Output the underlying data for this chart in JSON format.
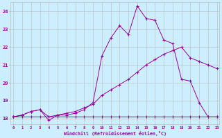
{
  "xlabel": "Windchill (Refroidissement éolien,°C)",
  "bg_color": "#cceeff",
  "line_color": "#990099",
  "grid_color": "#bbbbbb",
  "xmin": 0,
  "xmax": 23,
  "ymin": 17.7,
  "ymax": 24.5,
  "yticks": [
    18,
    19,
    20,
    21,
    22,
    23,
    24
  ],
  "series1_x": [
    0,
    1,
    2,
    3,
    4,
    5,
    6,
    7,
    8,
    9,
    10,
    11,
    12,
    13,
    14,
    15,
    16,
    17,
    18,
    19,
    20,
    21,
    22,
    23
  ],
  "series1_y": [
    18.1,
    18.1,
    18.1,
    18.1,
    18.1,
    18.1,
    18.1,
    18.1,
    18.1,
    18.1,
    18.1,
    18.1,
    18.1,
    18.1,
    18.1,
    18.1,
    18.1,
    18.1,
    18.1,
    18.1,
    18.1,
    18.1,
    18.1,
    18.1
  ],
  "series2_x": [
    0,
    1,
    2,
    3,
    4,
    5,
    6,
    7,
    8,
    9,
    10,
    11,
    12,
    13,
    14,
    15,
    16,
    17,
    18,
    19,
    20,
    21,
    22,
    23
  ],
  "series2_y": [
    18.1,
    18.2,
    18.4,
    18.5,
    18.1,
    18.2,
    18.3,
    18.4,
    18.6,
    18.8,
    19.3,
    19.6,
    19.9,
    20.2,
    20.6,
    21.0,
    21.3,
    21.6,
    21.8,
    22.0,
    21.4,
    21.2,
    21.0,
    20.8
  ],
  "series3_x": [
    0,
    1,
    2,
    3,
    4,
    5,
    6,
    7,
    8,
    9,
    10,
    11,
    12,
    13,
    14,
    15,
    16,
    17,
    18,
    19,
    20,
    21,
    22,
    23
  ],
  "series3_y": [
    18.1,
    18.2,
    18.4,
    18.5,
    17.9,
    18.2,
    18.2,
    18.3,
    18.5,
    18.9,
    21.5,
    22.5,
    23.2,
    22.7,
    24.3,
    23.6,
    23.5,
    22.4,
    22.2,
    20.2,
    20.1,
    18.9,
    18.1,
    18.1
  ]
}
